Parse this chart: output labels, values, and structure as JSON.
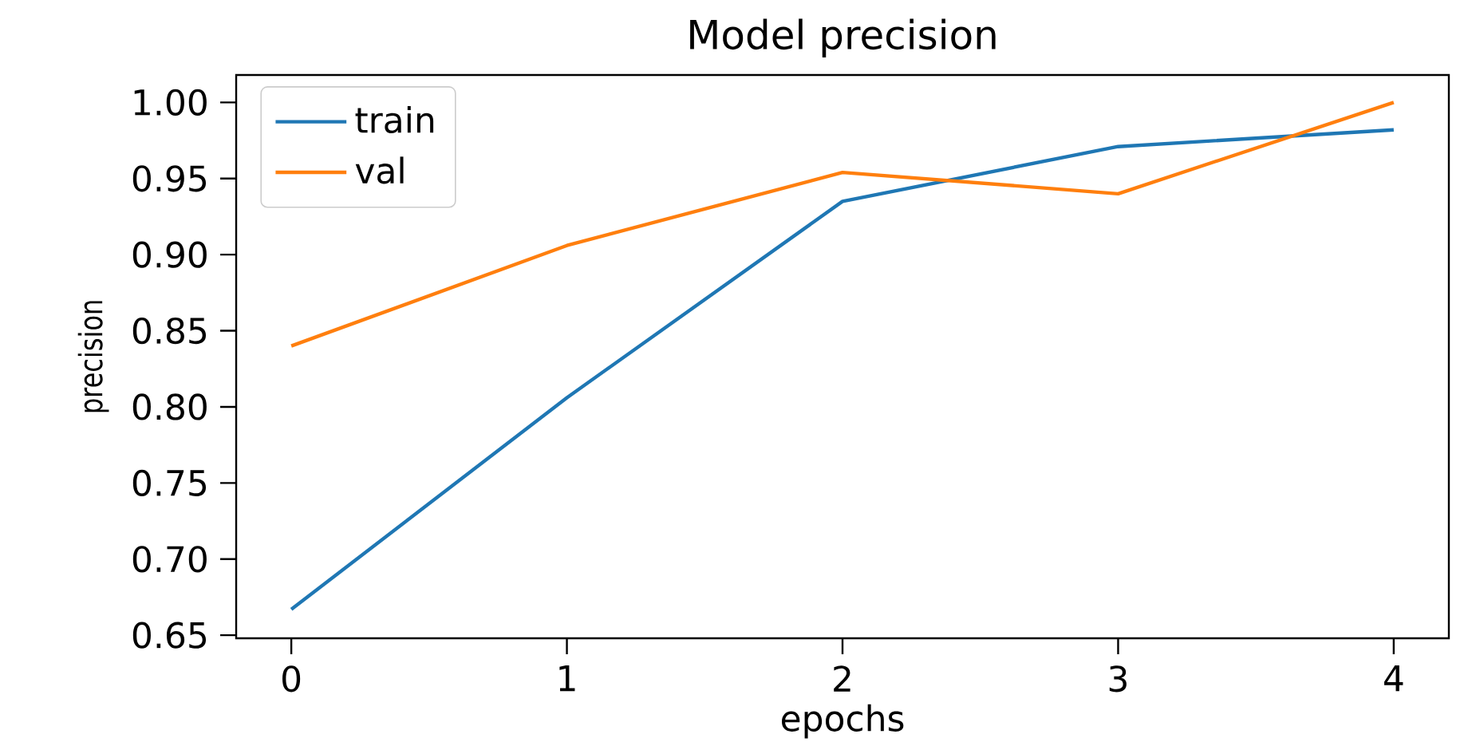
{
  "chart_data": {
    "type": "line",
    "title": "Model precision",
    "xlabel": "epochs",
    "ylabel": "precision",
    "x": [
      0,
      1,
      2,
      3,
      4
    ],
    "series": [
      {
        "name": "train",
        "color": "#1f77b4",
        "values": [
          0.667,
          0.806,
          0.935,
          0.971,
          0.982
        ]
      },
      {
        "name": "val",
        "color": "#ff7f0e",
        "values": [
          0.84,
          0.906,
          0.954,
          0.94,
          1.0
        ]
      }
    ],
    "xlim": [
      -0.2,
      4.2
    ],
    "ylim": [
      0.648,
      1.018
    ],
    "xticks": [
      0,
      1,
      2,
      3,
      4
    ],
    "yticks": [
      {
        "value": 0.65,
        "label": "0.65"
      },
      {
        "value": 0.7,
        "label": "0.70"
      },
      {
        "value": 0.75,
        "label": "0.75"
      },
      {
        "value": 0.8,
        "label": "0.80"
      },
      {
        "value": 0.85,
        "label": "0.85"
      },
      {
        "value": 0.9,
        "label": "0.90"
      },
      {
        "value": 0.95,
        "label": "0.95"
      },
      {
        "value": 1.0,
        "label": "1.00"
      }
    ],
    "legend": "top left",
    "grid": false,
    "marker": "none",
    "line_style": "solid"
  }
}
